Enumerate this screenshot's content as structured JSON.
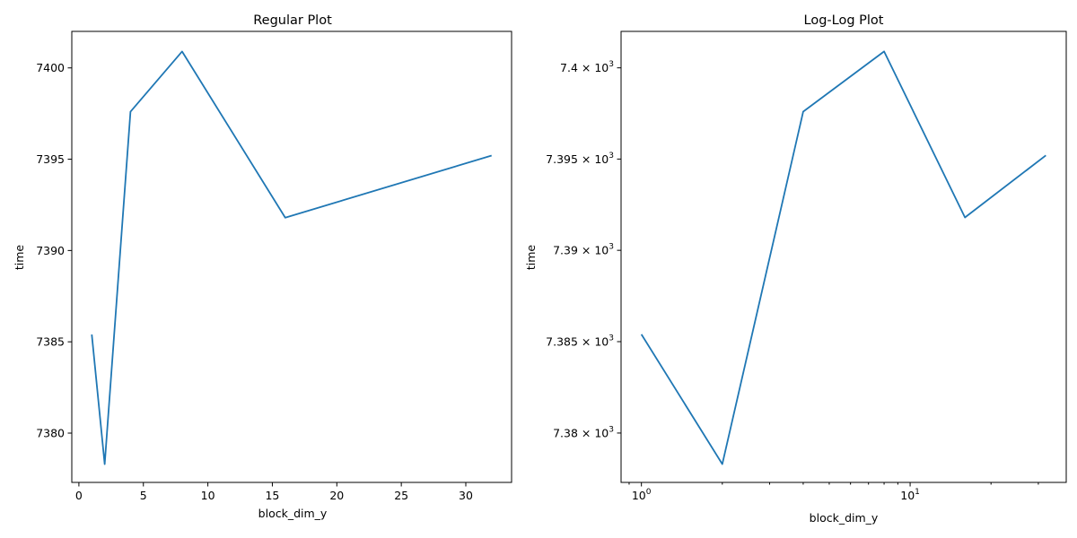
{
  "chart_data": [
    {
      "type": "line",
      "title": "Regular Plot",
      "xlabel": "block_dim_y",
      "ylabel": "time",
      "xscale": "linear",
      "yscale": "linear",
      "xlim": [
        -0.55,
        33.55
      ],
      "ylim": [
        7377.3,
        7402.0
      ],
      "grid": false,
      "x": [
        1,
        2,
        4,
        8,
        16,
        32
      ],
      "y": [
        7385.4,
        7378.3,
        7397.6,
        7400.9,
        7391.8,
        7395.2
      ],
      "xticks": [
        {
          "value": 0,
          "label": "0"
        },
        {
          "value": 5,
          "label": "5"
        },
        {
          "value": 10,
          "label": "10"
        },
        {
          "value": 15,
          "label": "15"
        },
        {
          "value": 20,
          "label": "20"
        },
        {
          "value": 25,
          "label": "25"
        },
        {
          "value": 30,
          "label": "30"
        }
      ],
      "yticks": [
        {
          "value": 7380,
          "label": "7380"
        },
        {
          "value": 7385,
          "label": "7385"
        },
        {
          "value": 7390,
          "label": "7390"
        },
        {
          "value": 7395,
          "label": "7395"
        },
        {
          "value": 7400,
          "label": "7400"
        }
      ]
    },
    {
      "type": "line",
      "title": "Log-Log Plot",
      "xlabel": "block_dim_y",
      "ylabel": "time",
      "xscale": "log",
      "yscale": "log",
      "xlim": [
        0.84,
        38.1
      ],
      "ylim": [
        7377.3,
        7402.0
      ],
      "grid": false,
      "x": [
        1,
        2,
        4,
        8,
        16,
        32
      ],
      "y": [
        7385.4,
        7378.3,
        7397.6,
        7400.9,
        7391.8,
        7395.2
      ],
      "xticks": [
        {
          "value": 1,
          "base": "10",
          "exp": "0"
        },
        {
          "value": 10,
          "base": "10",
          "exp": "1"
        }
      ],
      "yticks": [
        {
          "value": 7380,
          "mant": "7.38",
          "exp": "3"
        },
        {
          "value": 7385,
          "mant": "7.385",
          "exp": "3"
        },
        {
          "value": 7390,
          "mant": "7.39",
          "exp": "3"
        },
        {
          "value": 7395,
          "mant": "7.395",
          "exp": "3"
        },
        {
          "value": 7400,
          "mant": "7.4",
          "exp": "3"
        }
      ]
    }
  ]
}
